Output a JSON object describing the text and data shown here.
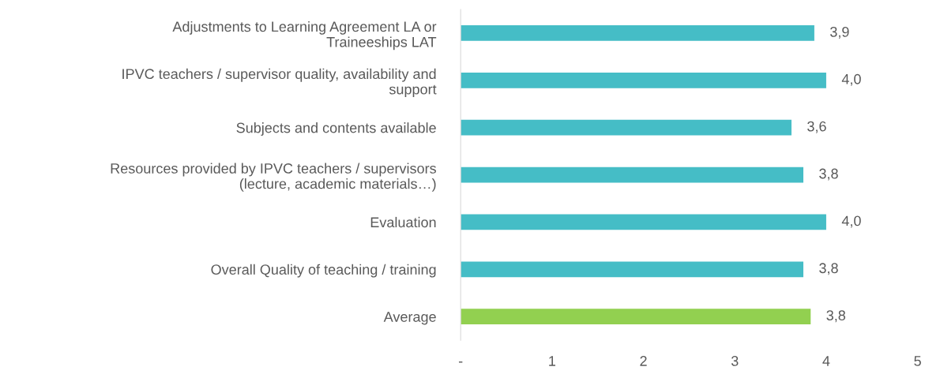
{
  "chart_data": {
    "type": "bar",
    "orientation": "horizontal",
    "categories": [
      "Adjustments to Learning Agreement LA or\nTraineeships LAT",
      "IPVC teachers / supervisor quality, availability and\nsupport",
      "Subjects and contents available",
      "Resources provided by IPVC teachers / supervisors\n(lecture, academic materials…)",
      "Evaluation",
      "Overall Quality of teaching / training",
      "Average"
    ],
    "values": [
      3.87,
      4.0,
      3.62,
      3.75,
      4.0,
      3.75,
      3.83
    ],
    "colors": [
      "#45bdc6",
      "#45bdc6",
      "#45bdc6",
      "#45bdc6",
      "#45bdc6",
      "#45bdc6",
      "#92d050"
    ],
    "value_labels": [
      "3,9",
      "4,0",
      "3,6",
      "3,8",
      "4,0",
      "3,8",
      "3,8"
    ],
    "xlim": [
      0,
      5
    ],
    "xticks": [
      {
        "value": 0,
        "label": "-"
      },
      1,
      2,
      3,
      4,
      5
    ],
    "grid": false
  }
}
